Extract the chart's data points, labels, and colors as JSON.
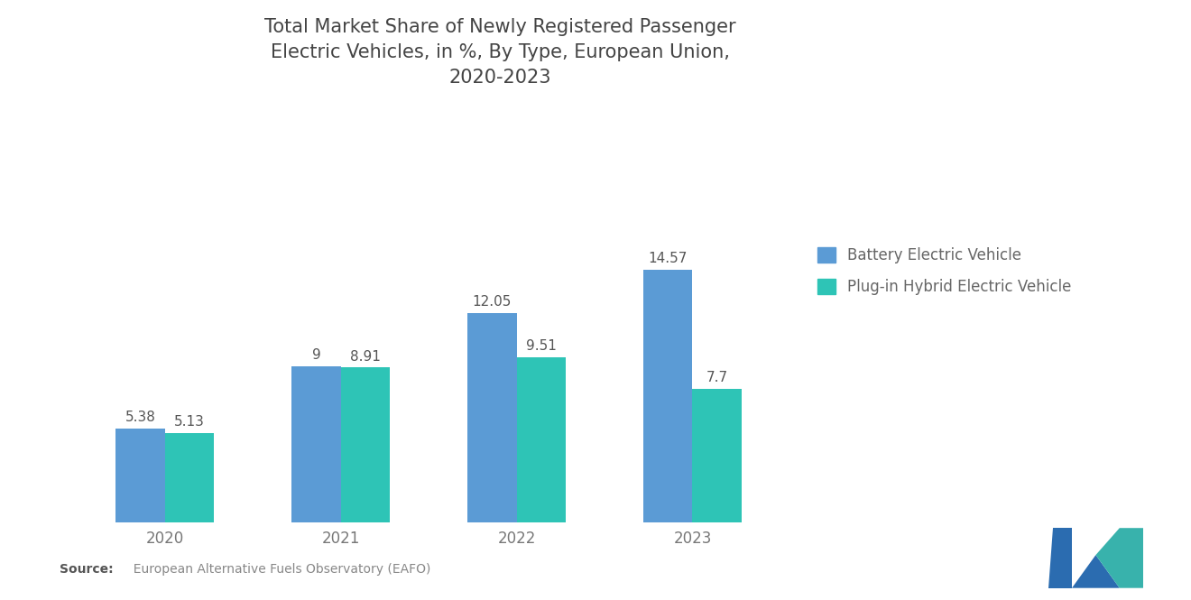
{
  "title": "Total Market Share of Newly Registered Passenger\nElectric Vehicles, in %, By Type, European Union,\n2020-2023",
  "years": [
    "2020",
    "2021",
    "2022",
    "2023"
  ],
  "bev_values": [
    5.38,
    9.0,
    12.05,
    14.57
  ],
  "phev_values": [
    5.13,
    8.91,
    9.51,
    7.7
  ],
  "bev_label_values": [
    "5.38",
    "9",
    "12.05",
    "14.57"
  ],
  "phev_label_values": [
    "5.13",
    "8.91",
    "9.51",
    "7.7"
  ],
  "bev_color": "#5B9BD5",
  "phev_color": "#2EC4B6",
  "bev_label": "Battery Electric Vehicle",
  "phev_label": "Plug-in Hybrid Electric Vehicle",
  "source_bold": "Source:",
  "source_rest": "  European Alternative Fuels Observatory (EAFO)",
  "background_color": "#FFFFFF",
  "title_fontsize": 15,
  "tick_fontsize": 12,
  "bar_width": 0.28,
  "ylim": [
    0,
    18
  ],
  "value_label_fontsize": 11,
  "value_label_color": "#555555",
  "tick_color": "#777777",
  "logo_color1": "#2B6CB0",
  "logo_color2": "#38B2AC"
}
